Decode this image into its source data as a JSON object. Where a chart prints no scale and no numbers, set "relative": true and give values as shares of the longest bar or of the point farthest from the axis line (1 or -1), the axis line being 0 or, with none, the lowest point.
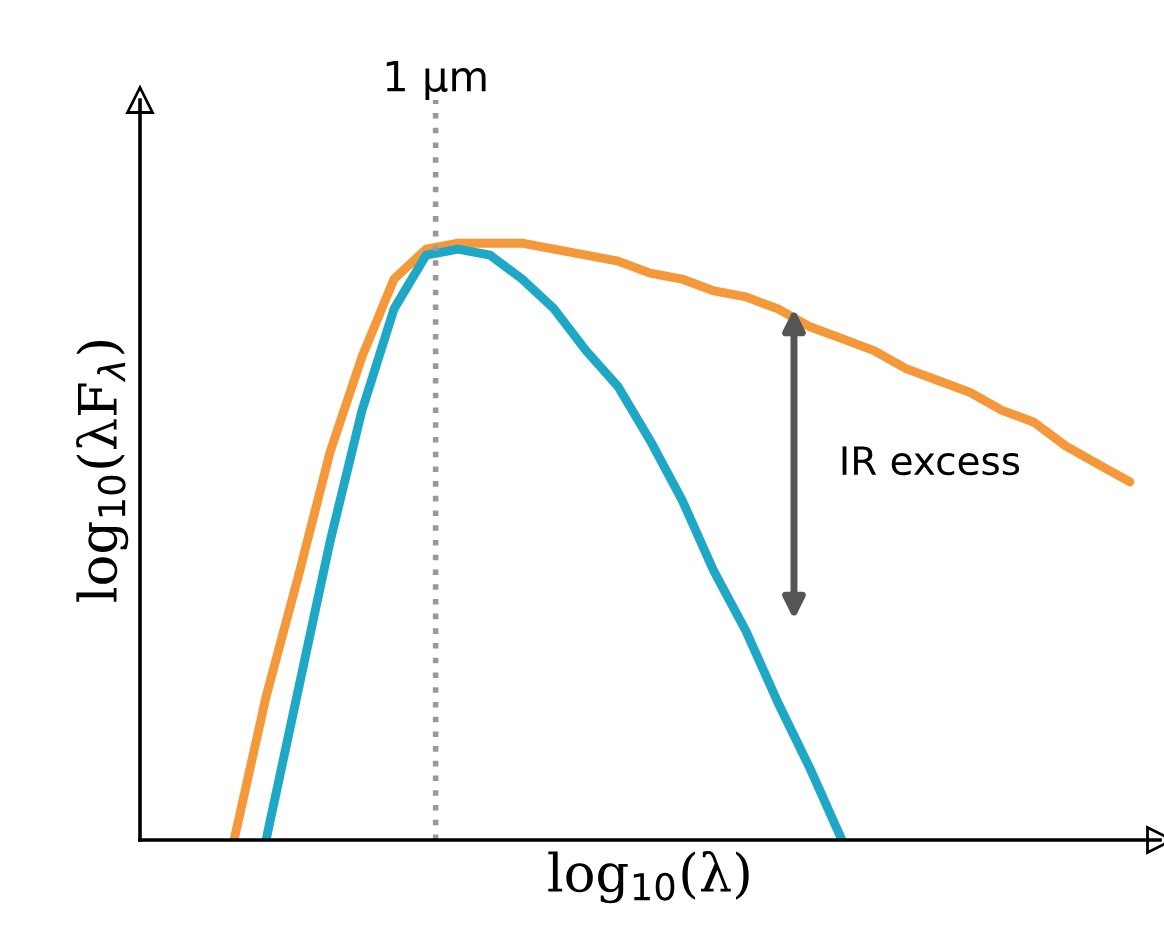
{
  "chart_data": {
    "type": "line",
    "relative": true,
    "xlabel": "log$_{10}$(λ)",
    "ylabel": "log$_{10}$(λF$_{λ}$)",
    "categories": [
      null,
      null,
      null,
      null,
      null,
      null,
      null,
      null,
      null,
      null,
      null,
      null,
      null,
      null,
      null,
      null,
      null,
      null,
      null,
      null,
      null,
      null,
      null,
      null,
      null,
      null,
      null,
      null,
      null
    ],
    "series": [
      {
        "color": "#f5983a",
        "values": [
          0,
          0.24,
          0.44,
          0.65,
          0.81,
          0.94,
          0.99,
          1,
          1,
          1,
          0.99,
          0.98,
          0.97,
          0.95,
          0.94,
          0.92,
          0.91,
          0.89,
          0.86,
          0.84,
          0.82,
          0.79,
          0.77,
          0.75,
          0.72,
          0.7,
          0.66,
          0.63,
          0.6
        ]
      },
      {
        "color": "#1fa8c6",
        "values": [
          null,
          0,
          0.25,
          0.5,
          0.72,
          0.89,
          0.98,
          0.99,
          0.98,
          0.94,
          0.89,
          0.82,
          0.76,
          0.67,
          0.57,
          0.45,
          0.35,
          0.23,
          0.12,
          0,
          null,
          null,
          null,
          null,
          null,
          null,
          null,
          null,
          null
        ]
      }
    ],
    "annotations": [
      "1 μm",
      "IR excess"
    ],
    "grid": false,
    "legend": false
  }
}
